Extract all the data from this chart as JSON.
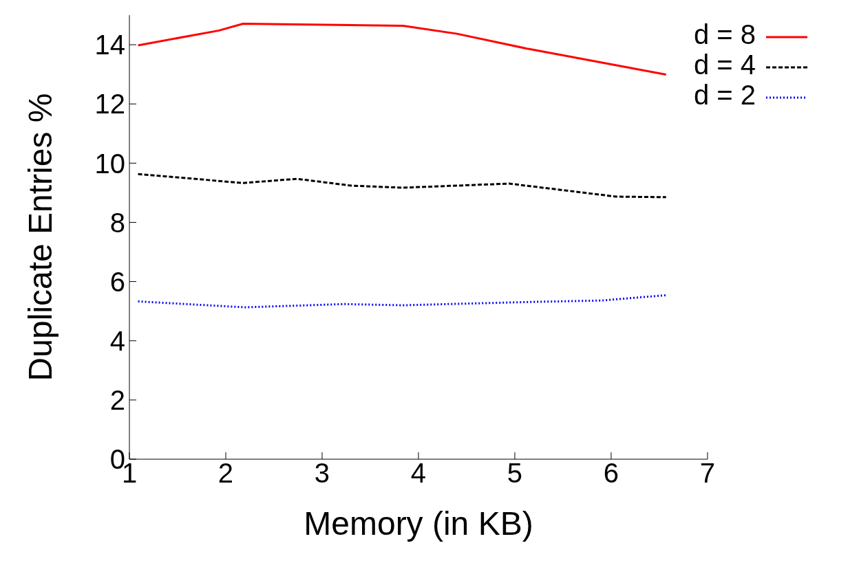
{
  "chart_data": {
    "type": "line",
    "xlabel": "Memory (in KB)",
    "ylabel": "Duplicate Entries %",
    "xlim": [
      1,
      7
    ],
    "xticks": [
      1,
      2,
      3,
      4,
      5,
      6,
      7
    ],
    "ylim": [
      0,
      15
    ],
    "yticks": [
      0,
      2,
      4,
      6,
      8,
      10,
      12,
      14
    ],
    "grid": false,
    "legend": "top right",
    "marker": "none",
    "series": [
      {
        "name": "d = 8",
        "color": "#ff0000",
        "line_style": "solid",
        "x": [
          1.09,
          1.93,
          2.18,
          3.84,
          4.4,
          5.14,
          6.57
        ],
        "values": [
          13.98,
          14.48,
          14.71,
          14.64,
          14.37,
          13.86,
          12.99
        ]
      },
      {
        "name": "d = 4",
        "color": "#000000",
        "line_style": "dashed",
        "x": [
          1.09,
          2.18,
          2.74,
          3.3,
          3.84,
          4.94,
          6.05,
          6.57
        ],
        "values": [
          9.63,
          9.33,
          9.47,
          9.24,
          9.17,
          9.31,
          8.87,
          8.85
        ]
      },
      {
        "name": "d = 2",
        "color": "#0000ff",
        "line_style": "dotted",
        "x": [
          1.09,
          2.2,
          3.23,
          3.84,
          5.14,
          5.9,
          6.57
        ],
        "values": [
          5.33,
          5.13,
          5.24,
          5.2,
          5.31,
          5.36,
          5.54
        ]
      }
    ]
  }
}
